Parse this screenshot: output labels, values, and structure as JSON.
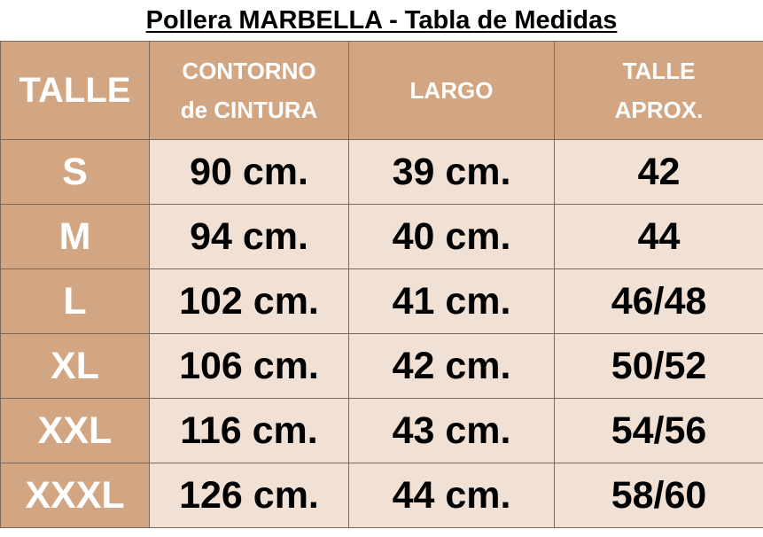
{
  "header": {
    "title": "Pollera MARBELLA - Tabla de Medidas"
  },
  "table": {
    "columns": [
      [
        "TALLE"
      ],
      [
        "CONTORNO",
        "de CINTURA"
      ],
      [
        "LARGO"
      ],
      [
        "TALLE",
        "APROX."
      ]
    ],
    "rows": [
      [
        "S",
        "90 cm.",
        "39 cm.",
        "42"
      ],
      [
        "M",
        "94 cm.",
        "40 cm.",
        "44"
      ],
      [
        "L",
        "102 cm.",
        "41 cm.",
        "46/48"
      ],
      [
        "XL",
        "106 cm.",
        "42 cm.",
        "50/52"
      ],
      [
        "XXL",
        "116 cm.",
        "43 cm.",
        "54/56"
      ],
      [
        "XXXL",
        "126 cm.",
        "44 cm.",
        "58/60"
      ]
    ]
  }
}
